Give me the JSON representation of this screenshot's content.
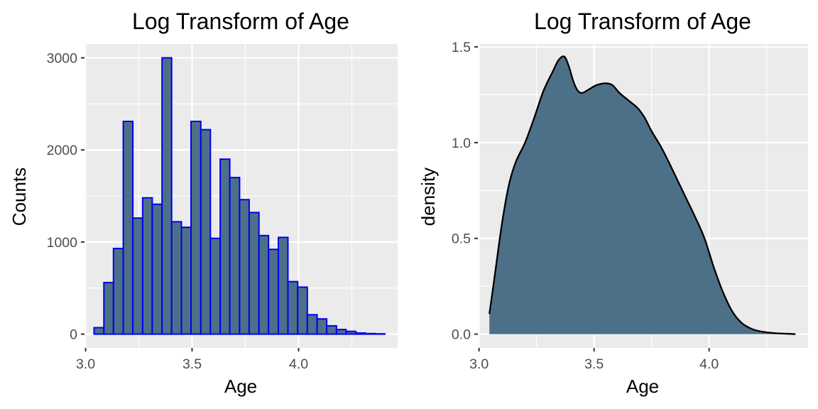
{
  "chart_data": [
    {
      "type": "bar",
      "title": "Log Transform of Age",
      "xlabel": "Age",
      "ylabel": "Counts",
      "xlim": [
        2.995,
        4.465
      ],
      "ylim": [
        -150,
        3150
      ],
      "x_ticks": [
        {
          "value": 3.0,
          "label": "3.0"
        },
        {
          "value": 3.5,
          "label": "3.5"
        },
        {
          "value": 4.0,
          "label": "4.0"
        }
      ],
      "y_ticks": [
        {
          "value": 0,
          "label": "0"
        },
        {
          "value": 1000,
          "label": "1000"
        },
        {
          "value": 2000,
          "label": "2000"
        },
        {
          "value": 3000,
          "label": "3000"
        }
      ],
      "grid": true,
      "bar_fill": "#4d7089",
      "bar_outline": "#0000ee",
      "bins": [
        {
          "x0": 3.04,
          "x1": 3.086,
          "count": 70
        },
        {
          "x0": 3.086,
          "x1": 3.131,
          "count": 560
        },
        {
          "x0": 3.131,
          "x1": 3.177,
          "count": 930
        },
        {
          "x0": 3.177,
          "x1": 3.222,
          "count": 2310
        },
        {
          "x0": 3.222,
          "x1": 3.268,
          "count": 1260
        },
        {
          "x0": 3.268,
          "x1": 3.313,
          "count": 1480
        },
        {
          "x0": 3.313,
          "x1": 3.359,
          "count": 1410
        },
        {
          "x0": 3.359,
          "x1": 3.404,
          "count": 3000
        },
        {
          "x0": 3.404,
          "x1": 3.45,
          "count": 1220
        },
        {
          "x0": 3.45,
          "x1": 3.495,
          "count": 1160
        },
        {
          "x0": 3.495,
          "x1": 3.541,
          "count": 2310
        },
        {
          "x0": 3.541,
          "x1": 3.586,
          "count": 2220
        },
        {
          "x0": 3.586,
          "x1": 3.632,
          "count": 1040
        },
        {
          "x0": 3.632,
          "x1": 3.677,
          "count": 1900
        },
        {
          "x0": 3.677,
          "x1": 3.723,
          "count": 1700
        },
        {
          "x0": 3.723,
          "x1": 3.768,
          "count": 1460
        },
        {
          "x0": 3.768,
          "x1": 3.814,
          "count": 1320
        },
        {
          "x0": 3.814,
          "x1": 3.859,
          "count": 1070
        },
        {
          "x0": 3.859,
          "x1": 3.905,
          "count": 920
        },
        {
          "x0": 3.905,
          "x1": 3.95,
          "count": 1050
        },
        {
          "x0": 3.95,
          "x1": 3.996,
          "count": 570
        },
        {
          "x0": 3.996,
          "x1": 4.041,
          "count": 510
        },
        {
          "x0": 4.041,
          "x1": 4.087,
          "count": 210
        },
        {
          "x0": 4.087,
          "x1": 4.132,
          "count": 165
        },
        {
          "x0": 4.132,
          "x1": 4.178,
          "count": 90
        },
        {
          "x0": 4.178,
          "x1": 4.223,
          "count": 50
        },
        {
          "x0": 4.223,
          "x1": 4.269,
          "count": 30
        },
        {
          "x0": 4.269,
          "x1": 4.314,
          "count": 12
        },
        {
          "x0": 4.314,
          "x1": 4.36,
          "count": 6
        },
        {
          "x0": 4.36,
          "x1": 4.405,
          "count": 3
        }
      ]
    },
    {
      "type": "area",
      "title": "Log Transform of Age",
      "xlabel": "Age",
      "ylabel": "density",
      "xlim": [
        2.995,
        4.43
      ],
      "ylim": [
        -0.072,
        1.515
      ],
      "x_ticks": [
        {
          "value": 3.0,
          "label": "3.0"
        },
        {
          "value": 3.5,
          "label": "3.5"
        },
        {
          "value": 4.0,
          "label": "4.0"
        }
      ],
      "y_ticks": [
        {
          "value": 0.0,
          "label": "0.0"
        },
        {
          "value": 0.5,
          "label": "0.5"
        },
        {
          "value": 1.0,
          "label": "1.0"
        },
        {
          "value": 1.5,
          "label": "1.5"
        }
      ],
      "grid": true,
      "area_fill": "#4d7089",
      "line_color": "#000000",
      "points": [
        [
          3.045,
          0.105
        ],
        [
          3.07,
          0.32
        ],
        [
          3.1,
          0.58
        ],
        [
          3.13,
          0.78
        ],
        [
          3.16,
          0.9
        ],
        [
          3.2,
          1.0
        ],
        [
          3.24,
          1.13
        ],
        [
          3.28,
          1.27
        ],
        [
          3.32,
          1.37
        ],
        [
          3.345,
          1.43
        ],
        [
          3.37,
          1.45
        ],
        [
          3.39,
          1.4
        ],
        [
          3.41,
          1.32
        ],
        [
          3.43,
          1.27
        ],
        [
          3.45,
          1.26
        ],
        [
          3.48,
          1.28
        ],
        [
          3.51,
          1.3
        ],
        [
          3.55,
          1.31
        ],
        [
          3.58,
          1.3
        ],
        [
          3.61,
          1.26
        ],
        [
          3.65,
          1.22
        ],
        [
          3.69,
          1.18
        ],
        [
          3.72,
          1.13
        ],
        [
          3.75,
          1.06
        ],
        [
          3.79,
          0.98
        ],
        [
          3.82,
          0.91
        ],
        [
          3.86,
          0.81
        ],
        [
          3.9,
          0.71
        ],
        [
          3.94,
          0.61
        ],
        [
          3.98,
          0.5
        ],
        [
          4.02,
          0.35
        ],
        [
          4.06,
          0.22
        ],
        [
          4.1,
          0.12
        ],
        [
          4.14,
          0.06
        ],
        [
          4.18,
          0.03
        ],
        [
          4.22,
          0.015
        ],
        [
          4.26,
          0.008
        ],
        [
          4.3,
          0.004
        ],
        [
          4.34,
          0.002
        ],
        [
          4.375,
          0.0
        ]
      ]
    }
  ]
}
